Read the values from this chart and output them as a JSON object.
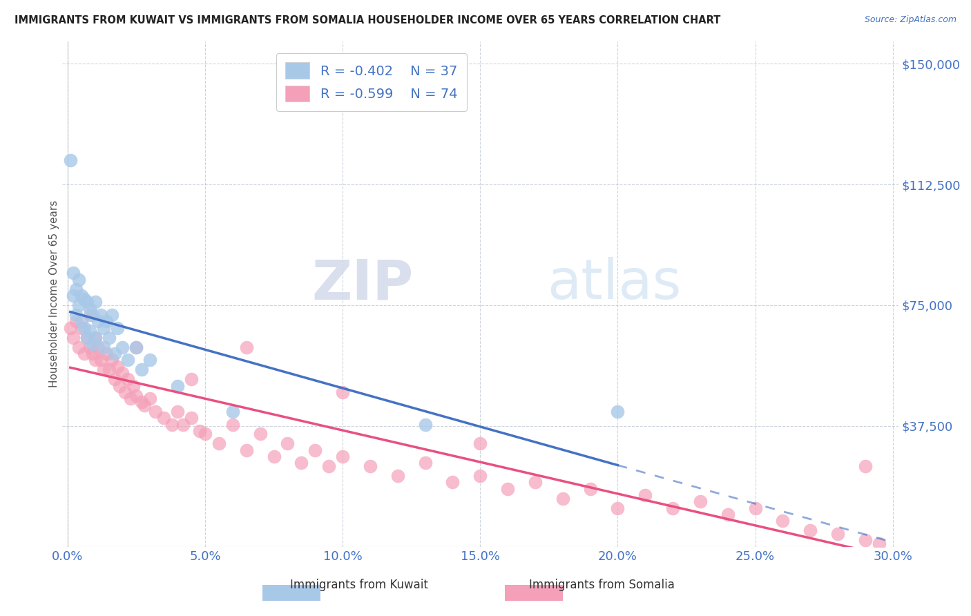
{
  "title": "IMMIGRANTS FROM KUWAIT VS IMMIGRANTS FROM SOMALIA HOUSEHOLDER INCOME OVER 65 YEARS CORRELATION CHART",
  "source": "Source: ZipAtlas.com",
  "ylabel": "Householder Income Over 65 years",
  "watermark_zip": "ZIP",
  "watermark_atlas": "atlas",
  "kuwait_R": -0.402,
  "kuwait_N": 37,
  "somalia_R": -0.599,
  "somalia_N": 74,
  "xlim": [
    -0.002,
    0.302
  ],
  "ylim": [
    0,
    157000
  ],
  "yticks": [
    37500,
    75000,
    112500,
    150000
  ],
  "ytick_labels": [
    "$37,500",
    "$75,000",
    "$112,500",
    "$150,000"
  ],
  "xticks": [
    0.0,
    0.05,
    0.1,
    0.15,
    0.2,
    0.25,
    0.3
  ],
  "xtick_labels": [
    "0.0%",
    "5.0%",
    "10.0%",
    "15.0%",
    "20.0%",
    "25.0%",
    "30.0%"
  ],
  "kuwait_color": "#a8c8e8",
  "somalia_color": "#f4a0b8",
  "kuwait_line_color": "#4472c4",
  "somalia_line_color": "#e85080",
  "title_color": "#222222",
  "axis_label_color": "#4472c4",
  "grid_color": "#b0b8c8",
  "background_color": "#ffffff",
  "kuwait_x": [
    0.001,
    0.002,
    0.002,
    0.003,
    0.003,
    0.004,
    0.004,
    0.005,
    0.005,
    0.006,
    0.006,
    0.007,
    0.007,
    0.008,
    0.008,
    0.009,
    0.009,
    0.01,
    0.01,
    0.011,
    0.012,
    0.013,
    0.013,
    0.014,
    0.015,
    0.016,
    0.017,
    0.018,
    0.02,
    0.022,
    0.025,
    0.027,
    0.03,
    0.04,
    0.06,
    0.13,
    0.2
  ],
  "kuwait_y": [
    120000,
    85000,
    78000,
    80000,
    72000,
    83000,
    75000,
    78000,
    70000,
    77000,
    68000,
    76000,
    65000,
    74000,
    67000,
    72000,
    63000,
    76000,
    65000,
    70000,
    72000,
    68000,
    62000,
    70000,
    65000,
    72000,
    60000,
    68000,
    62000,
    58000,
    62000,
    55000,
    58000,
    50000,
    42000,
    38000,
    42000
  ],
  "somalia_x": [
    0.001,
    0.002,
    0.003,
    0.004,
    0.005,
    0.006,
    0.007,
    0.008,
    0.009,
    0.01,
    0.01,
    0.011,
    0.012,
    0.013,
    0.014,
    0.015,
    0.016,
    0.017,
    0.018,
    0.019,
    0.02,
    0.021,
    0.022,
    0.023,
    0.024,
    0.025,
    0.027,
    0.028,
    0.03,
    0.032,
    0.035,
    0.038,
    0.04,
    0.042,
    0.045,
    0.048,
    0.05,
    0.055,
    0.06,
    0.065,
    0.07,
    0.075,
    0.08,
    0.085,
    0.09,
    0.095,
    0.1,
    0.11,
    0.12,
    0.13,
    0.14,
    0.15,
    0.16,
    0.17,
    0.18,
    0.19,
    0.2,
    0.21,
    0.22,
    0.23,
    0.24,
    0.25,
    0.26,
    0.27,
    0.28,
    0.29,
    0.295,
    0.008,
    0.025,
    0.045,
    0.065,
    0.1,
    0.15,
    0.29
  ],
  "somalia_y": [
    68000,
    65000,
    70000,
    62000,
    68000,
    60000,
    65000,
    62000,
    60000,
    65000,
    58000,
    62000,
    58000,
    55000,
    60000,
    55000,
    58000,
    52000,
    56000,
    50000,
    54000,
    48000,
    52000,
    46000,
    50000,
    47000,
    45000,
    44000,
    46000,
    42000,
    40000,
    38000,
    42000,
    38000,
    40000,
    36000,
    35000,
    32000,
    38000,
    30000,
    35000,
    28000,
    32000,
    26000,
    30000,
    25000,
    28000,
    25000,
    22000,
    26000,
    20000,
    22000,
    18000,
    20000,
    15000,
    18000,
    12000,
    16000,
    12000,
    14000,
    10000,
    12000,
    8000,
    5000,
    4000,
    2000,
    1000,
    72000,
    62000,
    52000,
    62000,
    48000,
    32000,
    25000
  ]
}
